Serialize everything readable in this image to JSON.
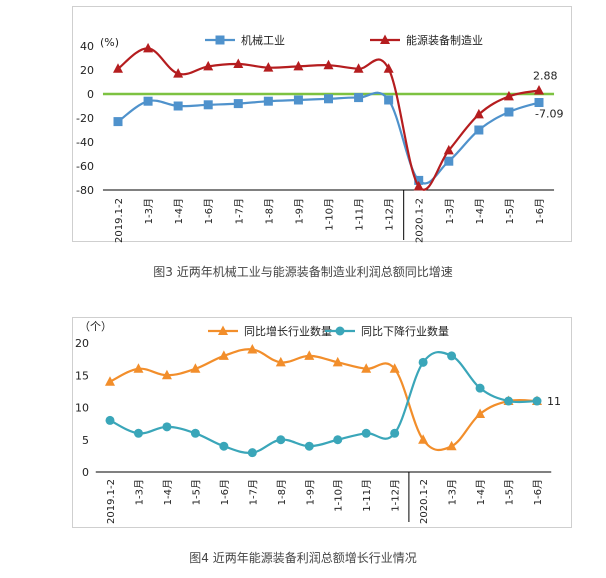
{
  "chart_data": [
    {
      "type": "line",
      "ylabel": "(%)",
      "ylim": [
        -80,
        40
      ],
      "yticks": [
        -80,
        -60,
        -40,
        -20,
        0,
        20,
        40
      ],
      "categories": [
        "2019.1-2",
        "1-3月",
        "1-4月",
        "1-6月",
        "1-7月",
        "1-8月",
        "1-9月",
        "1-10月",
        "1-11月",
        "1-12月",
        "2020.1-2",
        "1-3月",
        "1-4月",
        "1-5月",
        "1-6月"
      ],
      "series": [
        {
          "name": "机械工业",
          "color": "#4f92cc",
          "marker": "square",
          "values": [
            -23,
            -6,
            -10,
            -9,
            -8,
            -6,
            -5,
            -4,
            -3,
            -5,
            -72,
            -56,
            -30,
            -15,
            -7.09
          ]
        },
        {
          "name": "能源装备制造业",
          "color": "#b51d1f",
          "marker": "triangle",
          "values": [
            21,
            38,
            17,
            23,
            25,
            22,
            23,
            24,
            21,
            21,
            -77,
            -47,
            -17,
            -2,
            2.88
          ]
        }
      ],
      "zero_line_color": "#7dc241",
      "data_labels": [
        {
          "series": 1,
          "index": 14,
          "text": "2.88"
        },
        {
          "series": 0,
          "index": 14,
          "text": "-7.09"
        }
      ],
      "legend": "top"
    },
    {
      "type": "line",
      "ylabel": "（个）",
      "ylim": [
        0,
        20
      ],
      "yticks": [
        0,
        5,
        10,
        15,
        20
      ],
      "categories": [
        "2019.1-2",
        "1-3月",
        "1-4月",
        "1-5月",
        "1-6月",
        "1-7月",
        "1-8月",
        "1-9月",
        "1-10月",
        "1-11月",
        "1-12月",
        "2020.1-2",
        "1-3月",
        "1-4月",
        "1-5月",
        "1-6月"
      ],
      "series": [
        {
          "name": "同比增长行业数量",
          "color": "#f28e2b",
          "marker": "triangle",
          "values": [
            14,
            16,
            15,
            16,
            18,
            19,
            17,
            18,
            17,
            16,
            16,
            5,
            4,
            9,
            11,
            11
          ]
        },
        {
          "name": "同比下降行业数量",
          "color": "#3aa6b9",
          "marker": "circle",
          "values": [
            8,
            6,
            7,
            6,
            4,
            3,
            5,
            4,
            5,
            6,
            6,
            17,
            18,
            13,
            11,
            11
          ]
        }
      ],
      "data_labels": [
        {
          "series": 1,
          "index": 15,
          "text": "11"
        }
      ],
      "legend": "top"
    }
  ],
  "captions": {
    "fig3": "图3  近两年机械工业与能源装备制造业利润总额同比增速",
    "fig4": "图4  近两年能源装备利润总额增长行业情况"
  }
}
